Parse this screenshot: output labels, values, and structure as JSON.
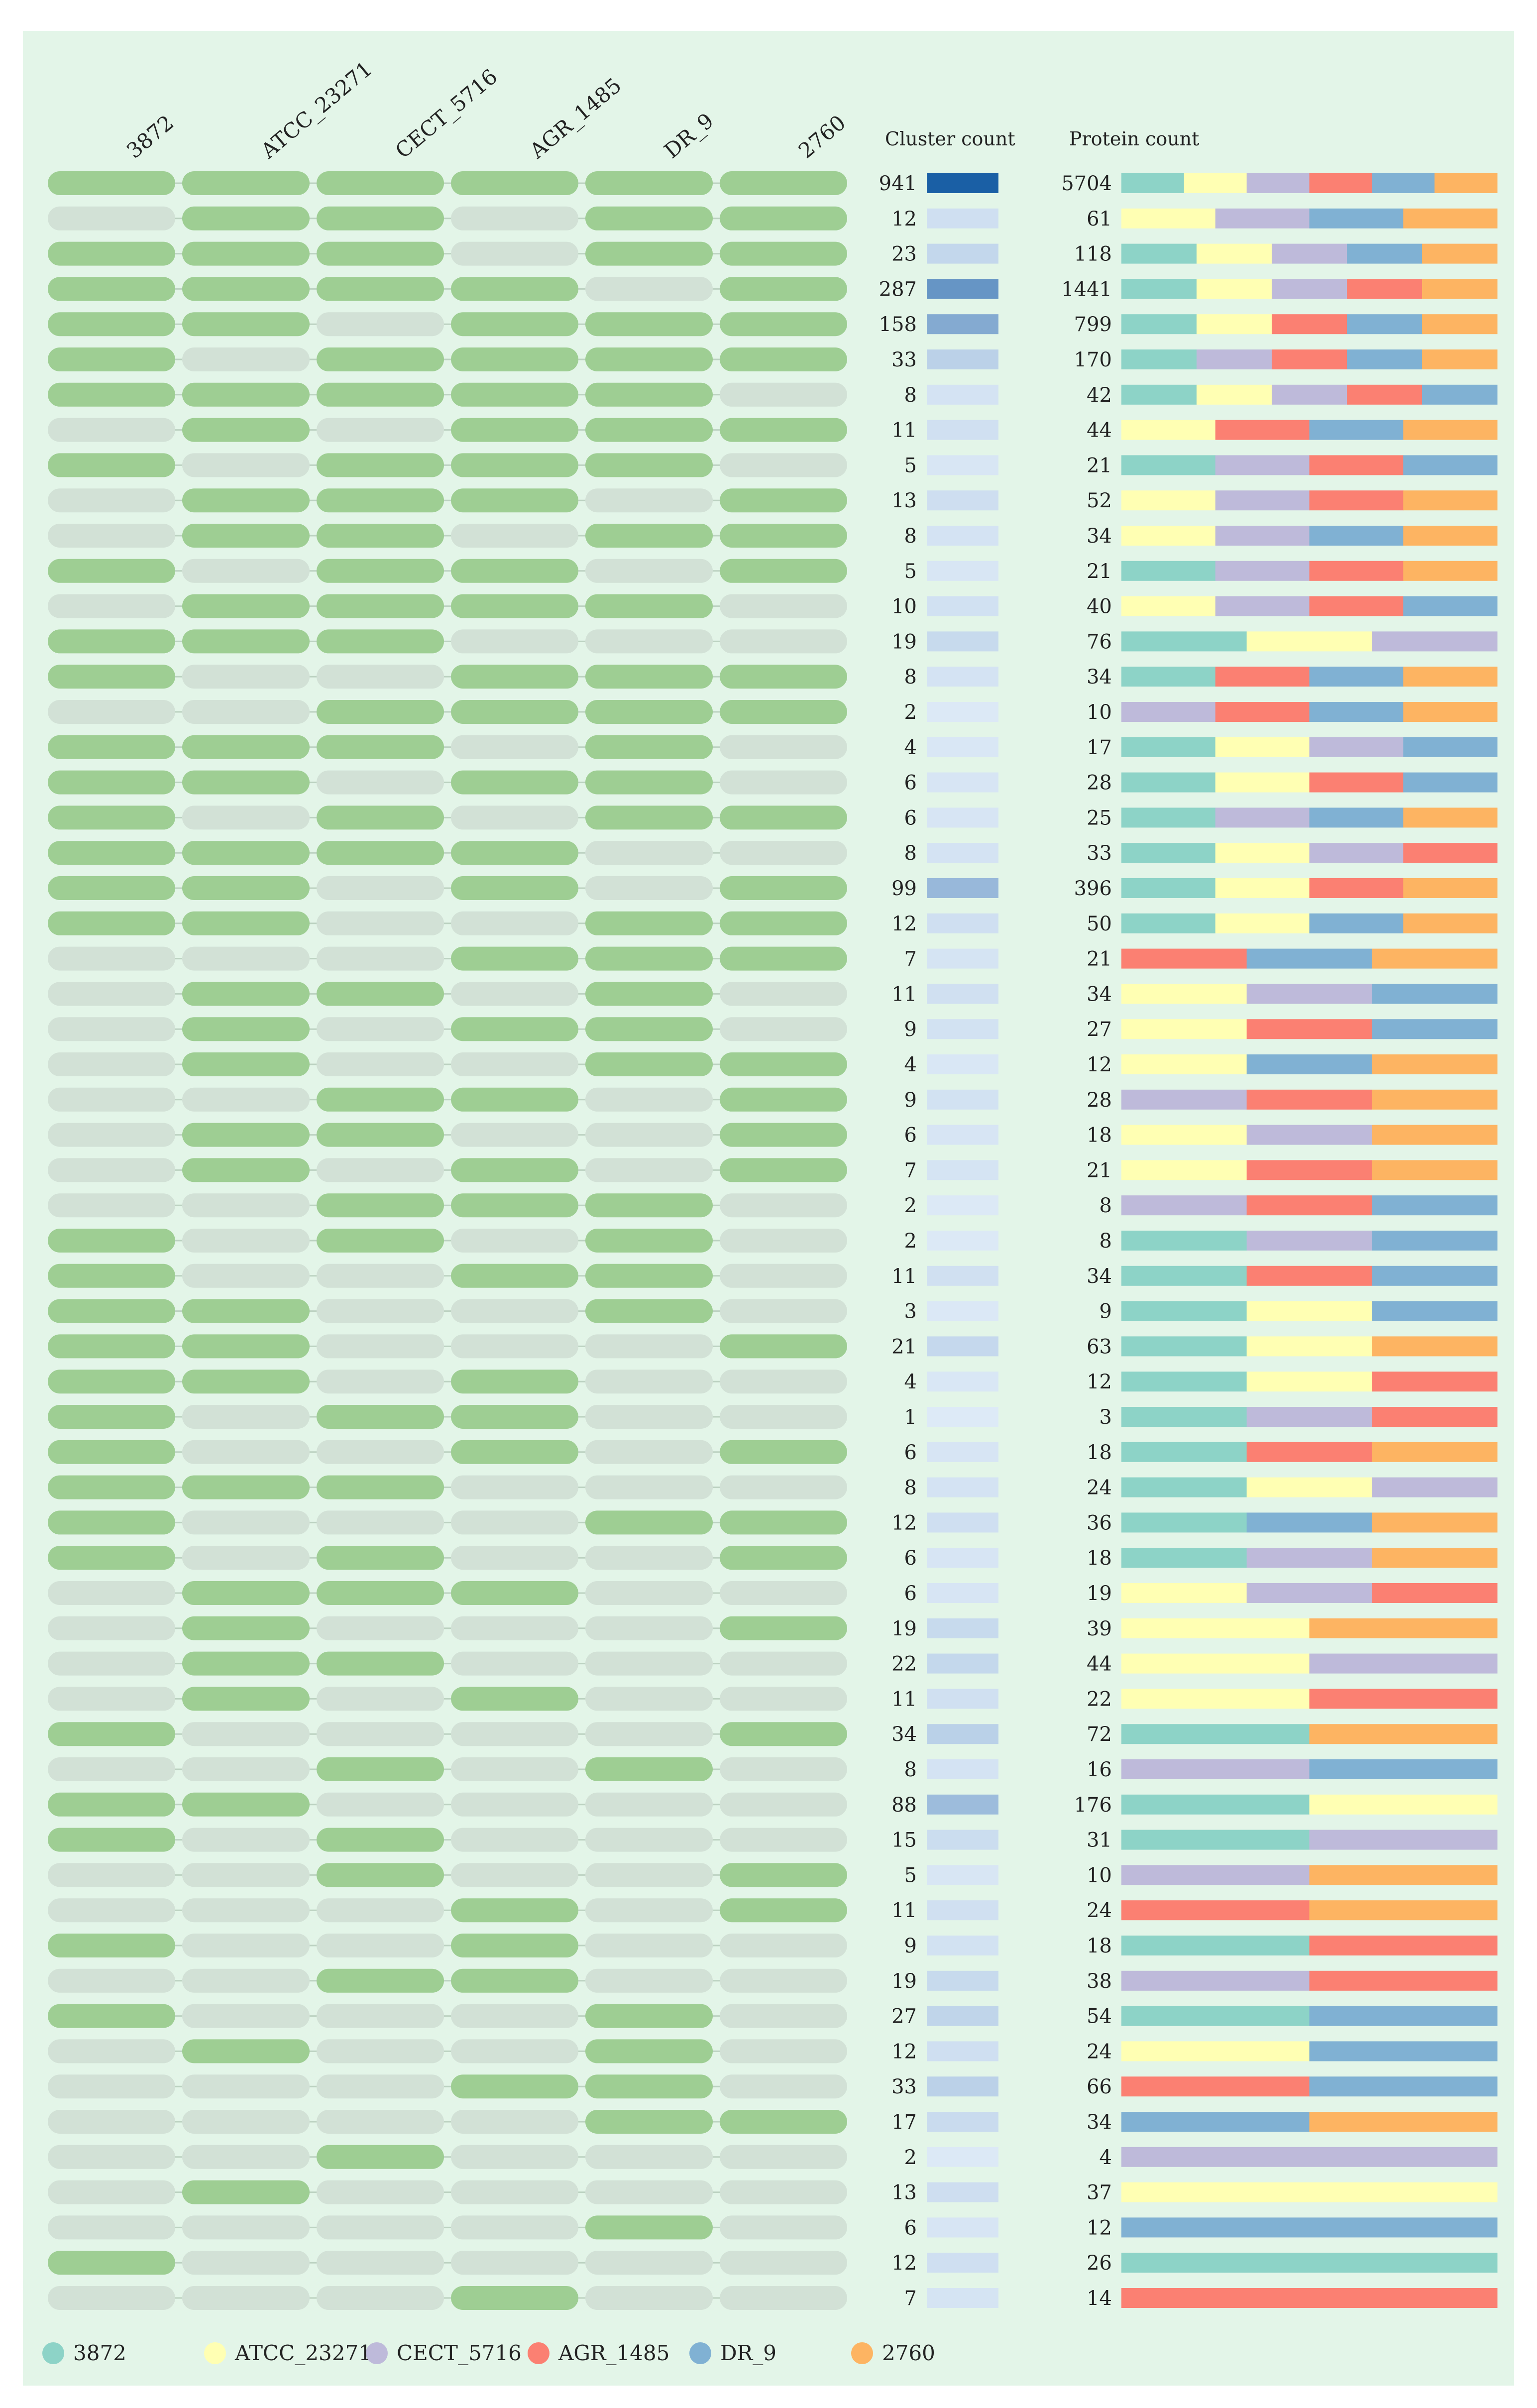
{
  "strains": [
    "3872",
    "ATCC_23271",
    "CECT_5716",
    "AGR_1485",
    "DR_9",
    "2760"
  ],
  "cluster_count_label": "Cluster count",
  "protein_count_label": "Protein count",
  "legend_labels": [
    "3872",
    "ATCC_23271",
    "CECT_5716",
    "AGR_1485",
    "DR_9",
    "2760"
  ],
  "colors": {
    "background": "#e3f5e8",
    "present": "#9ece93",
    "absent": "#d2e1d6",
    "absent_line": "#bcd2c1",
    "cluster_bar_light": "#deeaf7",
    "cluster_bar_dark": "#1a5fa5",
    "strain_colors": [
      "#8dd3c7",
      "#ffffb3",
      "#bebada",
      "#fb8072",
      "#80b1d3",
      "#fdb462"
    ]
  },
  "chart_data": {
    "type": "table",
    "columns": [
      "3872",
      "ATCC_23271",
      "CECT_5716",
      "AGR_1485",
      "DR_9",
      "2760"
    ],
    "rows": [
      {
        "presence": [
          1,
          1,
          1,
          1,
          1,
          1
        ],
        "cluster_count": 941,
        "protein_count": 5704
      },
      {
        "presence": [
          0,
          1,
          1,
          0,
          1,
          1
        ],
        "cluster_count": 12,
        "protein_count": 61
      },
      {
        "presence": [
          1,
          1,
          1,
          0,
          1,
          1
        ],
        "cluster_count": 23,
        "protein_count": 118
      },
      {
        "presence": [
          1,
          1,
          1,
          1,
          0,
          1
        ],
        "cluster_count": 287,
        "protein_count": 1441
      },
      {
        "presence": [
          1,
          1,
          0,
          1,
          1,
          1
        ],
        "cluster_count": 158,
        "protein_count": 799
      },
      {
        "presence": [
          1,
          0,
          1,
          1,
          1,
          1
        ],
        "cluster_count": 33,
        "protein_count": 170
      },
      {
        "presence": [
          1,
          1,
          1,
          1,
          1,
          0
        ],
        "cluster_count": 8,
        "protein_count": 42
      },
      {
        "presence": [
          0,
          1,
          0,
          1,
          1,
          1
        ],
        "cluster_count": 11,
        "protein_count": 44
      },
      {
        "presence": [
          1,
          0,
          1,
          1,
          1,
          0
        ],
        "cluster_count": 5,
        "protein_count": 21
      },
      {
        "presence": [
          0,
          1,
          1,
          1,
          0,
          1
        ],
        "cluster_count": 13,
        "protein_count": 52
      },
      {
        "presence": [
          0,
          1,
          1,
          0,
          1,
          1
        ],
        "cluster_count": 8,
        "protein_count": 34
      },
      {
        "presence": [
          1,
          0,
          1,
          1,
          0,
          1
        ],
        "cluster_count": 5,
        "protein_count": 21
      },
      {
        "presence": [
          0,
          1,
          1,
          1,
          1,
          0
        ],
        "cluster_count": 10,
        "protein_count": 40
      },
      {
        "presence": [
          1,
          1,
          1,
          0,
          0,
          0
        ],
        "cluster_count": 19,
        "protein_count": 76
      },
      {
        "presence": [
          1,
          0,
          0,
          1,
          1,
          1
        ],
        "cluster_count": 8,
        "protein_count": 34
      },
      {
        "presence": [
          0,
          0,
          1,
          1,
          1,
          1
        ],
        "cluster_count": 2,
        "protein_count": 10
      },
      {
        "presence": [
          1,
          1,
          1,
          0,
          1,
          0
        ],
        "cluster_count": 4,
        "protein_count": 17
      },
      {
        "presence": [
          1,
          1,
          0,
          1,
          1,
          0
        ],
        "cluster_count": 6,
        "protein_count": 28
      },
      {
        "presence": [
          1,
          0,
          1,
          0,
          1,
          1
        ],
        "cluster_count": 6,
        "protein_count": 25
      },
      {
        "presence": [
          1,
          1,
          1,
          1,
          0,
          0
        ],
        "cluster_count": 8,
        "protein_count": 33
      },
      {
        "presence": [
          1,
          1,
          0,
          1,
          0,
          1
        ],
        "cluster_count": 99,
        "protein_count": 396
      },
      {
        "presence": [
          1,
          1,
          0,
          0,
          1,
          1
        ],
        "cluster_count": 12,
        "protein_count": 50
      },
      {
        "presence": [
          0,
          0,
          0,
          1,
          1,
          1
        ],
        "cluster_count": 7,
        "protein_count": 21
      },
      {
        "presence": [
          0,
          1,
          1,
          0,
          1,
          0
        ],
        "cluster_count": 11,
        "protein_count": 34
      },
      {
        "presence": [
          0,
          1,
          0,
          1,
          1,
          0
        ],
        "cluster_count": 9,
        "protein_count": 27
      },
      {
        "presence": [
          0,
          1,
          0,
          0,
          1,
          1
        ],
        "cluster_count": 4,
        "protein_count": 12
      },
      {
        "presence": [
          0,
          0,
          1,
          1,
          0,
          1
        ],
        "cluster_count": 9,
        "protein_count": 28
      },
      {
        "presence": [
          0,
          1,
          1,
          0,
          0,
          1
        ],
        "cluster_count": 6,
        "protein_count": 18
      },
      {
        "presence": [
          0,
          1,
          0,
          1,
          0,
          1
        ],
        "cluster_count": 7,
        "protein_count": 21
      },
      {
        "presence": [
          0,
          0,
          1,
          1,
          1,
          0
        ],
        "cluster_count": 2,
        "protein_count": 8
      },
      {
        "presence": [
          1,
          0,
          1,
          0,
          1,
          0
        ],
        "cluster_count": 2,
        "protein_count": 8
      },
      {
        "presence": [
          1,
          0,
          0,
          1,
          1,
          0
        ],
        "cluster_count": 11,
        "protein_count": 34
      },
      {
        "presence": [
          1,
          1,
          0,
          0,
          1,
          0
        ],
        "cluster_count": 3,
        "protein_count": 9
      },
      {
        "presence": [
          1,
          1,
          0,
          0,
          0,
          1
        ],
        "cluster_count": 21,
        "protein_count": 63
      },
      {
        "presence": [
          1,
          1,
          0,
          1,
          0,
          0
        ],
        "cluster_count": 4,
        "protein_count": 12
      },
      {
        "presence": [
          1,
          0,
          1,
          1,
          0,
          0
        ],
        "cluster_count": 1,
        "protein_count": 3
      },
      {
        "presence": [
          1,
          0,
          0,
          1,
          0,
          1
        ],
        "cluster_count": 6,
        "protein_count": 18
      },
      {
        "presence": [
          1,
          1,
          1,
          0,
          0,
          0
        ],
        "cluster_count": 8,
        "protein_count": 24
      },
      {
        "presence": [
          1,
          0,
          0,
          0,
          1,
          1
        ],
        "cluster_count": 12,
        "protein_count": 36
      },
      {
        "presence": [
          1,
          0,
          1,
          0,
          0,
          1
        ],
        "cluster_count": 6,
        "protein_count": 18
      },
      {
        "presence": [
          0,
          1,
          1,
          1,
          0,
          0
        ],
        "cluster_count": 6,
        "protein_count": 19
      },
      {
        "presence": [
          0,
          1,
          0,
          0,
          0,
          1
        ],
        "cluster_count": 19,
        "protein_count": 39
      },
      {
        "presence": [
          0,
          1,
          1,
          0,
          0,
          0
        ],
        "cluster_count": 22,
        "protein_count": 44
      },
      {
        "presence": [
          0,
          1,
          0,
          1,
          0,
          0
        ],
        "cluster_count": 11,
        "protein_count": 22
      },
      {
        "presence": [
          1,
          0,
          0,
          0,
          0,
          1
        ],
        "cluster_count": 34,
        "protein_count": 72
      },
      {
        "presence": [
          0,
          0,
          1,
          0,
          1,
          0
        ],
        "cluster_count": 8,
        "protein_count": 16
      },
      {
        "presence": [
          1,
          1,
          0,
          0,
          0,
          0
        ],
        "cluster_count": 88,
        "protein_count": 176
      },
      {
        "presence": [
          1,
          0,
          1,
          0,
          0,
          0
        ],
        "cluster_count": 15,
        "protein_count": 31
      },
      {
        "presence": [
          0,
          0,
          1,
          0,
          0,
          1
        ],
        "cluster_count": 5,
        "protein_count": 10
      },
      {
        "presence": [
          0,
          0,
          0,
          1,
          0,
          1
        ],
        "cluster_count": 11,
        "protein_count": 24
      },
      {
        "presence": [
          1,
          0,
          0,
          1,
          0,
          0
        ],
        "cluster_count": 9,
        "protein_count": 18
      },
      {
        "presence": [
          0,
          0,
          1,
          1,
          0,
          0
        ],
        "cluster_count": 19,
        "protein_count": 38
      },
      {
        "presence": [
          1,
          0,
          0,
          0,
          1,
          0
        ],
        "cluster_count": 27,
        "protein_count": 54
      },
      {
        "presence": [
          0,
          1,
          0,
          0,
          1,
          0
        ],
        "cluster_count": 12,
        "protein_count": 24
      },
      {
        "presence": [
          0,
          0,
          0,
          1,
          1,
          0
        ],
        "cluster_count": 33,
        "protein_count": 66
      },
      {
        "presence": [
          0,
          0,
          0,
          0,
          1,
          1
        ],
        "cluster_count": 17,
        "protein_count": 34
      },
      {
        "presence": [
          0,
          0,
          1,
          0,
          0,
          0
        ],
        "cluster_count": 2,
        "protein_count": 4
      },
      {
        "presence": [
          0,
          1,
          0,
          0,
          0,
          0
        ],
        "cluster_count": 13,
        "protein_count": 37
      },
      {
        "presence": [
          0,
          0,
          0,
          0,
          1,
          0
        ],
        "cluster_count": 6,
        "protein_count": 12
      },
      {
        "presence": [
          1,
          0,
          0,
          0,
          0,
          0
        ],
        "cluster_count": 12,
        "protein_count": 26
      },
      {
        "presence": [
          0,
          0,
          0,
          1,
          0,
          0
        ],
        "cluster_count": 7,
        "protein_count": 14
      }
    ]
  }
}
